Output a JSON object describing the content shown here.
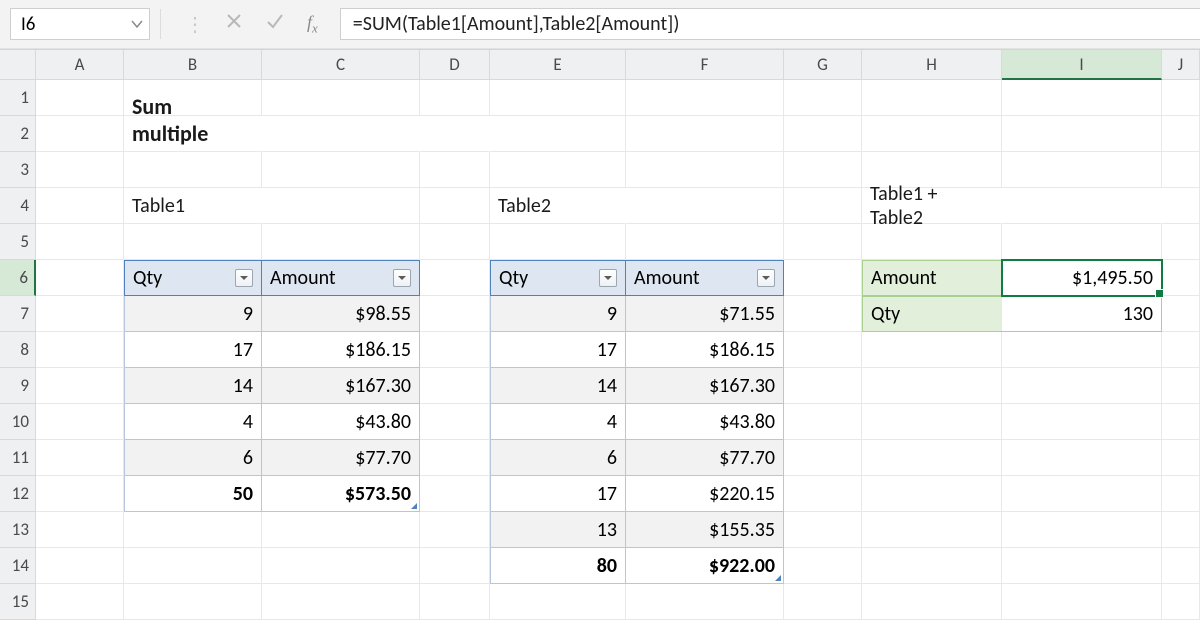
{
  "formula_bar": {
    "cell_ref": "I6",
    "formula": "=SUM(Table1[Amount],Table2[Amount])"
  },
  "columns": [
    "A",
    "B",
    "C",
    "D",
    "E",
    "F",
    "G",
    "H",
    "I",
    "J"
  ],
  "rows": [
    "1",
    "2",
    "3",
    "4",
    "5",
    "6",
    "7",
    "8",
    "9",
    "10",
    "11",
    "12",
    "13",
    "14",
    "15"
  ],
  "active_col_index": 8,
  "active_row_index": 5,
  "title": "Sum multiple tables",
  "labels": {
    "table1": "Table1",
    "table2": "Table2",
    "sum_title": "Table1 + Table2",
    "qty": "Qty",
    "amount": "Amount"
  },
  "table1": {
    "headers": [
      "Qty",
      "Amount"
    ],
    "rows": [
      {
        "qty": "9",
        "amount": "$98.55"
      },
      {
        "qty": "17",
        "amount": "$186.15"
      },
      {
        "qty": "14",
        "amount": "$167.30"
      },
      {
        "qty": "4",
        "amount": "$43.80"
      },
      {
        "qty": "6",
        "amount": "$77.70"
      }
    ],
    "total": {
      "qty": "50",
      "amount": "$573.50"
    }
  },
  "table2": {
    "headers": [
      "Qty",
      "Amount"
    ],
    "rows": [
      {
        "qty": "9",
        "amount": "$71.55"
      },
      {
        "qty": "17",
        "amount": "$186.15"
      },
      {
        "qty": "14",
        "amount": "$167.30"
      },
      {
        "qty": "4",
        "amount": "$43.80"
      },
      {
        "qty": "6",
        "amount": "$77.70"
      },
      {
        "qty": "17",
        "amount": "$220.15"
      },
      {
        "qty": "13",
        "amount": "$155.35"
      }
    ],
    "total": {
      "qty": "80",
      "amount": "$922.00"
    }
  },
  "summary": {
    "amount_label": "Amount",
    "amount_value": "$1,495.50",
    "qty_label": "Qty",
    "qty_value": "130"
  },
  "colors": {
    "accent_green": "#107c41",
    "table_header_bg": "#dde6f1",
    "table_border": "#4f81bd",
    "summary_bg": "#e2efda",
    "summary_border": "#a9d08e",
    "grid_line": "#e8e8e8",
    "heading_bg": "#eef0f1"
  }
}
